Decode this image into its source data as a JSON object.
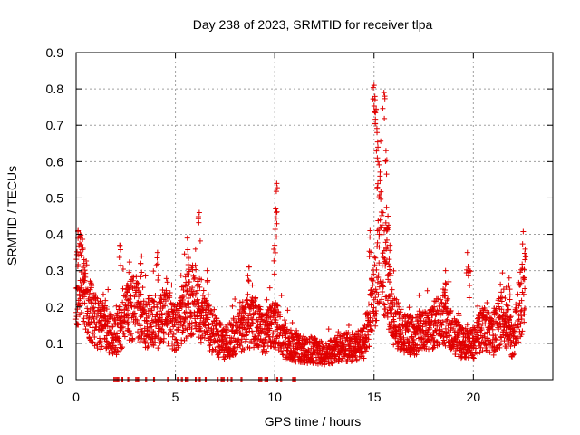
{
  "chart_data": {
    "type": "scatter",
    "title": "Day 238 of 2023, SRMTID for receiver tlpa",
    "xlabel": "GPS time / hours",
    "ylabel": "SRMTID / TECUs",
    "xlim": [
      0,
      24
    ],
    "ylim": [
      0,
      0.9
    ],
    "x_ticks": [
      0,
      5,
      10,
      15,
      20
    ],
    "y_ticks": [
      0,
      0.1,
      0.2,
      0.3,
      0.4,
      0.5,
      0.6,
      0.7,
      0.8,
      0.9
    ],
    "x_tick_labels": [
      "0",
      "5",
      "10",
      "15",
      "20"
    ],
    "y_tick_labels": [
      "0",
      "0.1",
      "0.2",
      "0.3",
      "0.4",
      "0.5",
      "0.6",
      "0.7",
      "0.8",
      "0.9"
    ],
    "grid": true,
    "marker": "plus",
    "series": [
      {
        "name": "SRMTID",
        "color": "#e00000",
        "profile": [
          [
            0.0,
            0.24
          ],
          [
            0.3,
            0.28
          ],
          [
            0.6,
            0.2
          ],
          [
            1.0,
            0.16
          ],
          [
            1.5,
            0.14
          ],
          [
            2.0,
            0.12
          ],
          [
            2.5,
            0.18
          ],
          [
            3.0,
            0.2
          ],
          [
            3.5,
            0.16
          ],
          [
            4.0,
            0.15
          ],
          [
            4.5,
            0.18
          ],
          [
            5.0,
            0.14
          ],
          [
            5.5,
            0.2
          ],
          [
            6.0,
            0.22
          ],
          [
            6.5,
            0.16
          ],
          [
            7.0,
            0.12
          ],
          [
            7.5,
            0.1
          ],
          [
            8.0,
            0.12
          ],
          [
            8.5,
            0.15
          ],
          [
            9.0,
            0.16
          ],
          [
            9.5,
            0.12
          ],
          [
            10.0,
            0.16
          ],
          [
            10.5,
            0.1
          ],
          [
            11.0,
            0.09
          ],
          [
            11.5,
            0.08
          ],
          [
            12.0,
            0.08
          ],
          [
            12.5,
            0.07
          ],
          [
            13.0,
            0.08
          ],
          [
            13.5,
            0.09
          ],
          [
            14.0,
            0.09
          ],
          [
            14.5,
            0.1
          ],
          [
            15.0,
            0.22
          ],
          [
            15.3,
            0.35
          ],
          [
            15.6,
            0.3
          ],
          [
            16.0,
            0.16
          ],
          [
            16.5,
            0.13
          ],
          [
            17.0,
            0.12
          ],
          [
            17.5,
            0.13
          ],
          [
            18.0,
            0.15
          ],
          [
            18.5,
            0.18
          ],
          [
            19.0,
            0.12
          ],
          [
            19.5,
            0.1
          ],
          [
            20.0,
            0.1
          ],
          [
            20.5,
            0.14
          ],
          [
            21.0,
            0.12
          ],
          [
            21.5,
            0.18
          ],
          [
            22.0,
            0.1
          ],
          [
            22.3,
            0.2
          ],
          [
            22.6,
            0.24
          ]
        ],
        "spikes": [
          {
            "x": 0.1,
            "y": 0.41
          },
          {
            "x": 0.2,
            "y": 0.4
          },
          {
            "x": 0.4,
            "y": 0.32
          },
          {
            "x": 2.2,
            "y": 0.37
          },
          {
            "x": 2.6,
            "y": 0.25
          },
          {
            "x": 3.3,
            "y": 0.34
          },
          {
            "x": 4.1,
            "y": 0.35
          },
          {
            "x": 5.6,
            "y": 0.39
          },
          {
            "x": 6.2,
            "y": 0.46
          },
          {
            "x": 6.6,
            "y": 0.3
          },
          {
            "x": 8.7,
            "y": 0.31
          },
          {
            "x": 9.6,
            "y": 0.22
          },
          {
            "x": 10.1,
            "y": 0.54
          },
          {
            "x": 10.05,
            "y": 0.47
          },
          {
            "x": 10.0,
            "y": 0.37
          },
          {
            "x": 14.8,
            "y": 0.41
          },
          {
            "x": 15.0,
            "y": 0.81
          },
          {
            "x": 15.05,
            "y": 0.77
          },
          {
            "x": 15.1,
            "y": 0.74
          },
          {
            "x": 15.15,
            "y": 0.68
          },
          {
            "x": 15.2,
            "y": 0.6
          },
          {
            "x": 15.3,
            "y": 0.56
          },
          {
            "x": 15.5,
            "y": 0.79
          },
          {
            "x": 15.6,
            "y": 0.63
          },
          {
            "x": 15.7,
            "y": 0.45
          },
          {
            "x": 15.8,
            "y": 0.37
          },
          {
            "x": 18.6,
            "y": 0.3
          },
          {
            "x": 19.7,
            "y": 0.35
          },
          {
            "x": 19.8,
            "y": 0.3
          },
          {
            "x": 21.8,
            "y": 0.28
          },
          {
            "x": 22.6,
            "y": 0.34
          }
        ],
        "zero_values": [
          1.9,
          2.0,
          2.1,
          2.3,
          2.6,
          3.0,
          3.1,
          3.5,
          3.9,
          4.6,
          5.1,
          5.3,
          5.5,
          5.6,
          6.0,
          6.2,
          6.5,
          7.1,
          7.3,
          7.4,
          7.6,
          7.8,
          8.3,
          9.2,
          9.3,
          9.5,
          9.6,
          10.1,
          10.3,
          10.9,
          11.0
        ],
        "sample_step_hours": 0.02
      }
    ]
  }
}
